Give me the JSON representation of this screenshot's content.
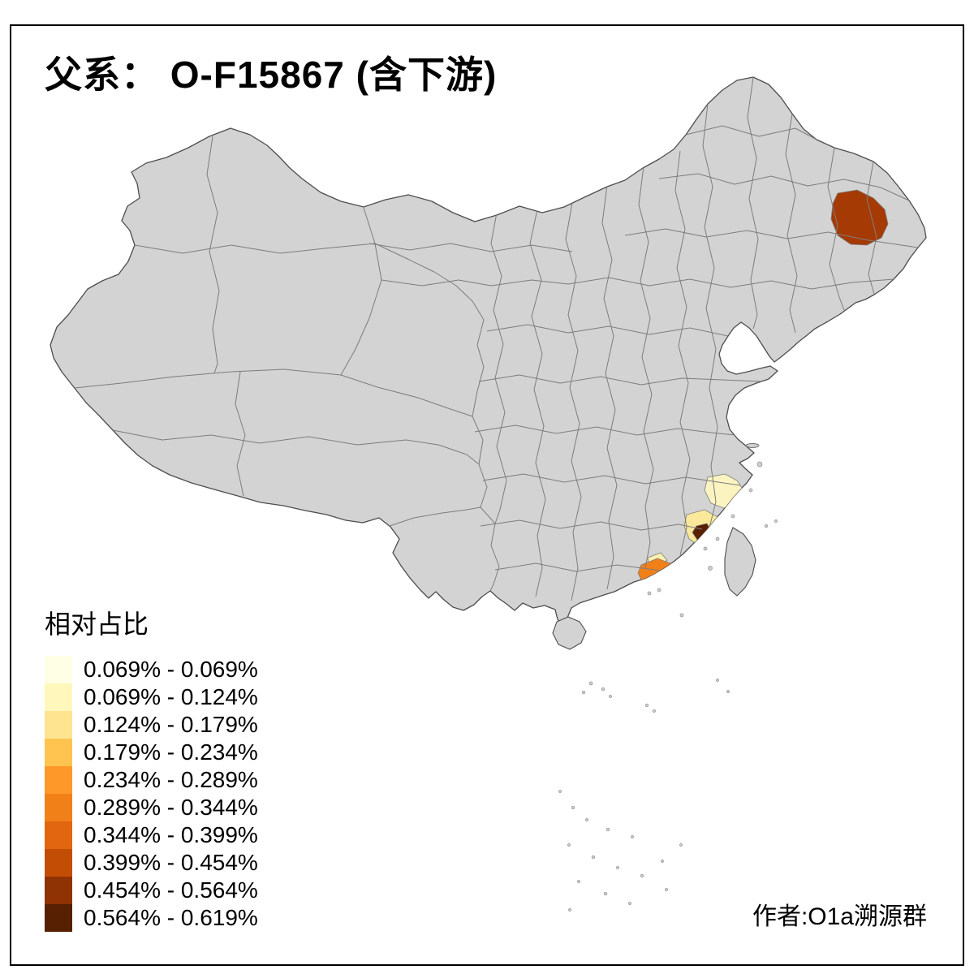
{
  "title": "父系： O-F15867 (含下游)",
  "legend": {
    "title": "相对占比",
    "items": [
      {
        "label": "0.069% - 0.069%",
        "color": "#FFFFE5"
      },
      {
        "label": "0.069% - 0.124%",
        "color": "#FFF7BC"
      },
      {
        "label": "0.124% - 0.179%",
        "color": "#FEE391"
      },
      {
        "label": "0.179% - 0.234%",
        "color": "#FEC44F"
      },
      {
        "label": "0.234% - 0.289%",
        "color": "#FE9929"
      },
      {
        "label": "0.289% - 0.344%",
        "color": "#F28019"
      },
      {
        "label": "0.344% - 0.399%",
        "color": "#E2650F"
      },
      {
        "label": "0.399% - 0.454%",
        "color": "#C44D06"
      },
      {
        "label": "0.454% - 0.564%",
        "color": "#8F3204"
      },
      {
        "label": "0.564% - 0.619%",
        "color": "#572003"
      }
    ]
  },
  "attribution": "作者:O1a溯源群",
  "map": {
    "base_fill": "#D3D3D3",
    "highlights": {
      "northeast": {
        "color": "#A53A05"
      },
      "fujian_north": {
        "color": "#FBF3C0"
      },
      "fujian_south": {
        "color": "#FAE89B"
      },
      "fujian_dark": {
        "color": "#572003"
      },
      "guangdong_light": {
        "color": "#FAEFB0"
      },
      "guangdong_orange": {
        "color": "#F28019"
      }
    }
  },
  "chart_data": {
    "type": "choropleth",
    "title": "父系： O-F15867 (含下游)",
    "legend_title": "相对占比",
    "unit": "%",
    "classes": [
      "0.069% - 0.069%",
      "0.069% - 0.124%",
      "0.124% - 0.179%",
      "0.179% - 0.234%",
      "0.234% - 0.289%",
      "0.289% - 0.344%",
      "0.344% - 0.399%",
      "0.399% - 0.454%",
      "0.454% - 0.564%",
      "0.564% - 0.619%"
    ],
    "highlighted_regions": [
      {
        "area": "northeast-china",
        "color": "#A53A05"
      },
      {
        "area": "fujian-coast-north",
        "color": "#FBF3C0"
      },
      {
        "area": "fujian-coast-south",
        "color": "#FAE89B"
      },
      {
        "area": "fujian-coast-dark-spot",
        "color": "#572003"
      },
      {
        "area": "guangdong-east-coast",
        "color": "#F28019"
      }
    ]
  }
}
